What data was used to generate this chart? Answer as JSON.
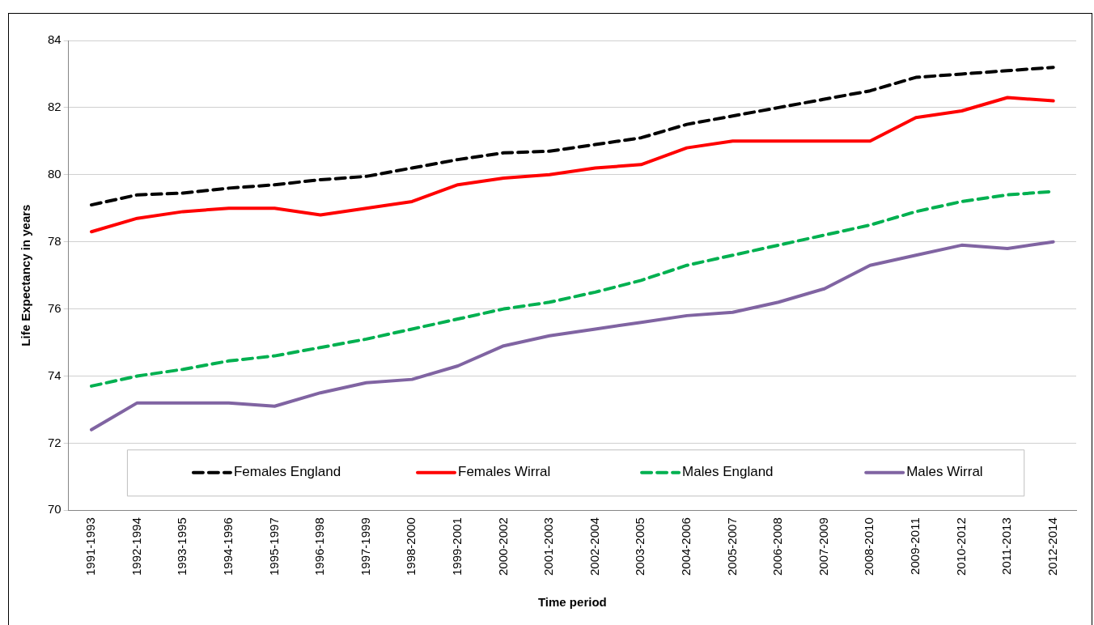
{
  "chart_data": {
    "type": "line",
    "xlabel": "Time period",
    "ylabel": "Life Expectancy in years",
    "categories": [
      "1991-1993",
      "1992-1994",
      "1993-1995",
      "1994-1996",
      "1995-1997",
      "1996-1998",
      "1997-1999",
      "1998-2000",
      "1999-2001",
      "2000-2002",
      "2001-2003",
      "2002-2004",
      "2003-2005",
      "2004-2006",
      "2005-2007",
      "2006-2008",
      "2007-2009",
      "2008-2010",
      "2009-2011",
      "2010-2012",
      "2011-2013",
      "2012-2014"
    ],
    "series": [
      {
        "name": "Females England",
        "color": "#000000",
        "line_style": "dashed",
        "values": [
          79.1,
          79.4,
          79.45,
          79.6,
          79.7,
          79.85,
          79.95,
          80.2,
          80.45,
          80.65,
          80.7,
          80.9,
          81.1,
          81.5,
          81.75,
          82.0,
          82.25,
          82.5,
          82.9,
          83.0,
          83.1,
          83.2
        ]
      },
      {
        "name": "Females Wirral",
        "color": "#ff0000",
        "line_style": "solid",
        "values": [
          78.3,
          78.7,
          78.9,
          79.0,
          79.0,
          78.8,
          79.0,
          79.2,
          79.7,
          79.9,
          80.0,
          80.2,
          80.3,
          80.8,
          81.0,
          81.0,
          81.0,
          81.0,
          81.7,
          81.9,
          82.3,
          82.2
        ]
      },
      {
        "name": "Males England",
        "color": "#00b050",
        "line_style": "dashed",
        "values": [
          73.7,
          74.0,
          74.2,
          74.45,
          74.6,
          74.85,
          75.1,
          75.4,
          75.7,
          76.0,
          76.2,
          76.5,
          76.85,
          77.3,
          77.6,
          77.9,
          78.2,
          78.5,
          78.9,
          79.2,
          79.4,
          79.5
        ]
      },
      {
        "name": "Males Wirral",
        "color": "#8064a2",
        "line_style": "solid",
        "values": [
          72.4,
          73.2,
          73.2,
          73.2,
          73.1,
          73.5,
          73.8,
          73.9,
          74.3,
          74.9,
          75.2,
          75.4,
          75.6,
          75.8,
          75.9,
          76.2,
          76.6,
          77.3,
          77.6,
          77.9,
          77.8,
          78.0
        ]
      }
    ],
    "ylim": [
      70,
      84
    ],
    "yticks": [
      70,
      72,
      74,
      76,
      78,
      80,
      82,
      84
    ],
    "grid": "y",
    "legend": "bottom",
    "marker": "none"
  }
}
